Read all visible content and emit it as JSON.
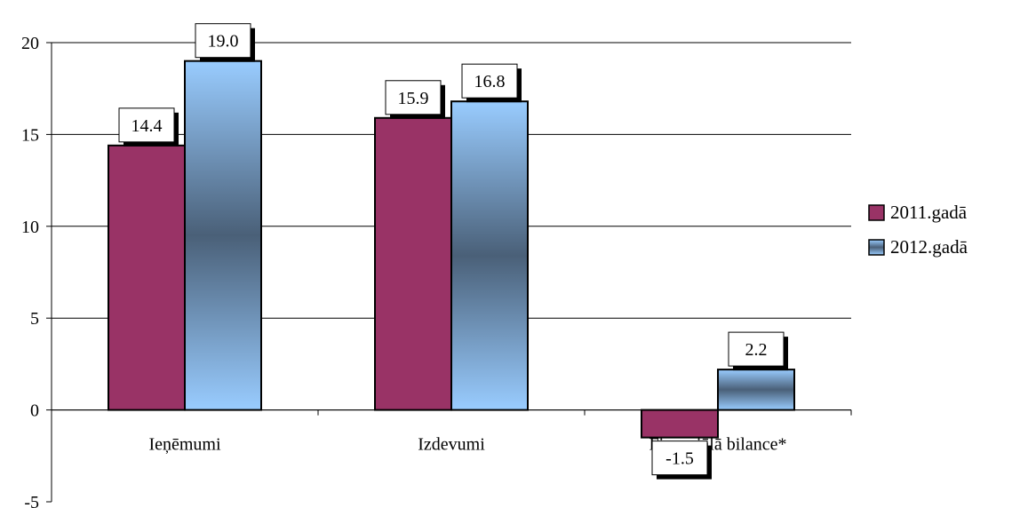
{
  "chart_data": {
    "type": "bar",
    "categories": [
      "Ieņēmumi",
      "Izdevumi",
      "Finansiālā bilance*"
    ],
    "series": [
      {
        "name": "2011.gadā",
        "values": [
          14.4,
          15.9,
          -1.5
        ],
        "labels": [
          "14.4",
          "15.9",
          "-1.5"
        ],
        "color": "#993366"
      },
      {
        "name": "2012.gadā",
        "values": [
          19.0,
          16.8,
          2.2
        ],
        "labels": [
          "19.0",
          "16.8",
          "2.2"
        ],
        "color": "#99ccff",
        "gradient_mid": "#4a6078"
      }
    ],
    "yticks": [
      "20",
      "15",
      "10",
      "5",
      "0",
      "-5"
    ],
    "ytick_values": [
      20,
      15,
      10,
      5,
      0,
      -5
    ],
    "ylim": [
      -5,
      20
    ],
    "grid": true,
    "legend": "right",
    "title": "",
    "xlabel": "",
    "ylabel": ""
  }
}
